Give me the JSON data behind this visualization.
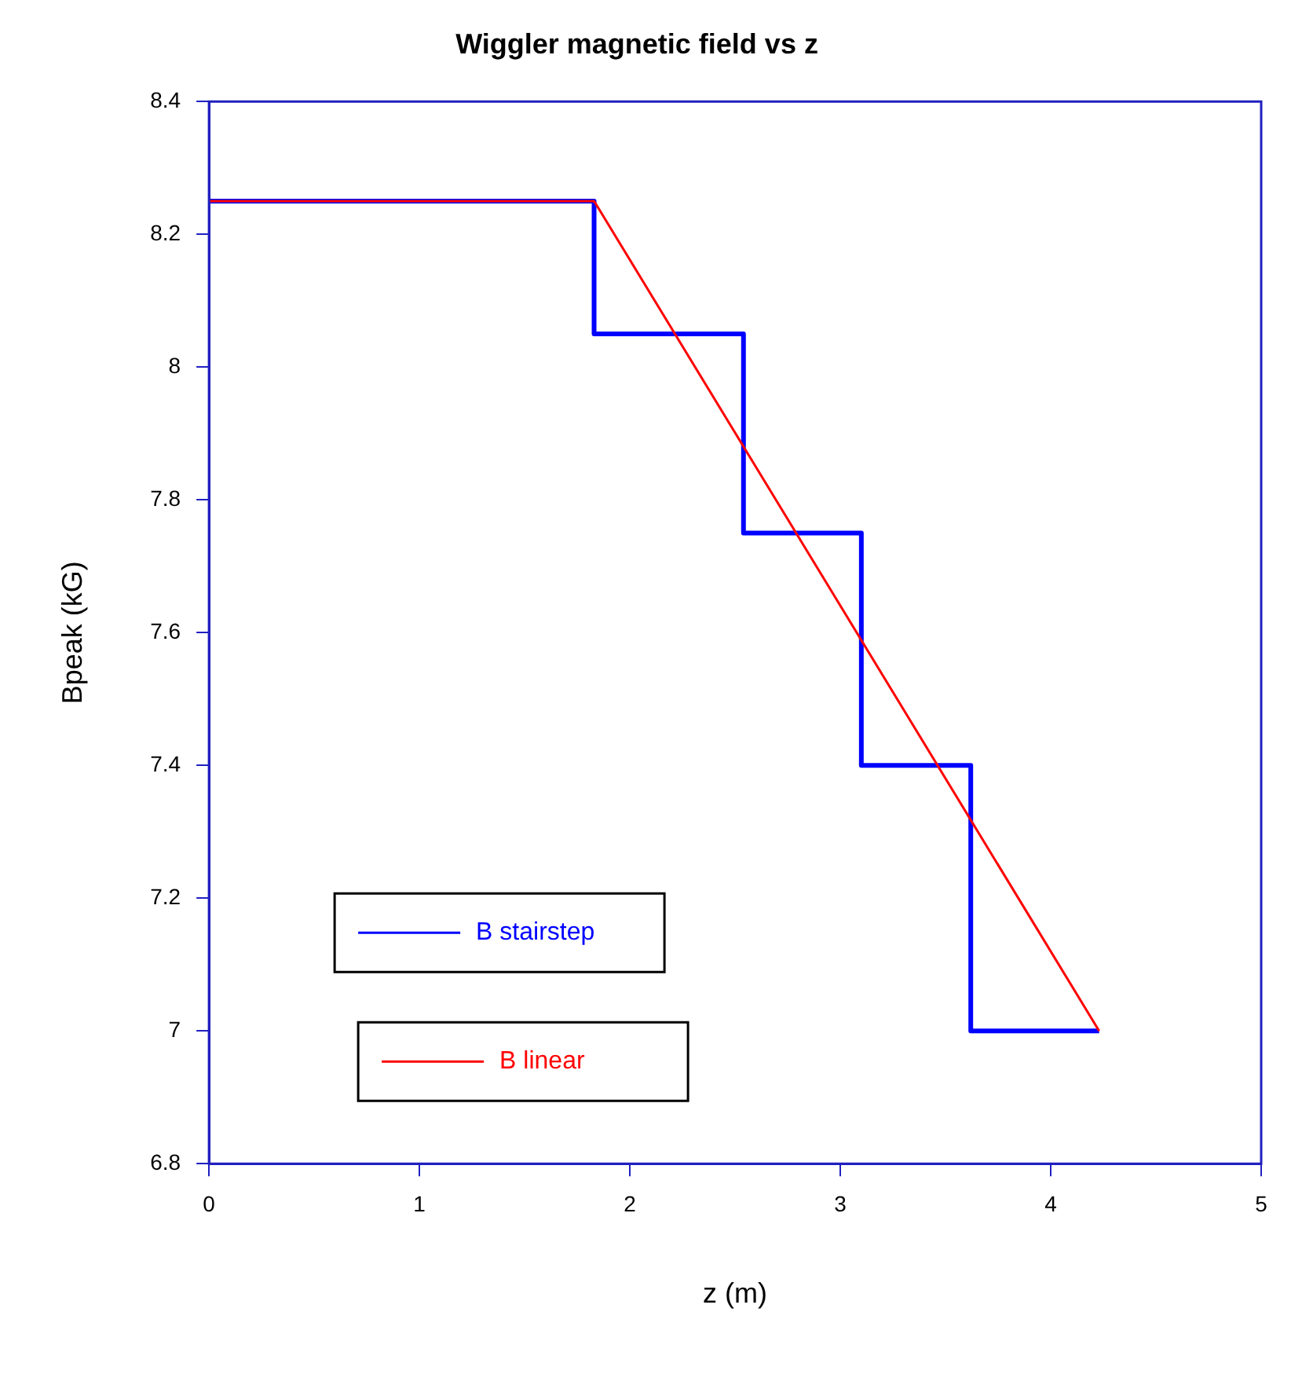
{
  "chart_data": {
    "type": "line",
    "title": "Wiggler magnetic field vs z",
    "xlabel": "z (m)",
    "ylabel": "Bpeak (kG)",
    "series": [
      {
        "name": "B stairstep",
        "type": "step",
        "color": "#0000ff",
        "x": [
          0,
          1.83,
          2.54,
          3.1,
          3.62,
          4.23
        ],
        "values": [
          8.25,
          8.05,
          7.75,
          7.4,
          7.0,
          7.0
        ]
      },
      {
        "name": "B linear",
        "type": "line",
        "color": "#ff0000",
        "x": [
          0,
          1.83,
          4.23
        ],
        "values": [
          8.25,
          8.25,
          7.0
        ]
      }
    ],
    "xlim": [
      0,
      5
    ],
    "xticks": [
      0,
      1,
      2,
      3,
      4,
      5
    ],
    "ylim": [
      6.8,
      8.4
    ],
    "yticks": [
      6.8,
      7,
      7.2,
      7.4,
      7.6,
      7.8,
      8,
      8.2,
      8.4
    ],
    "grid": false,
    "legend": "bottom left",
    "marker": "none",
    "line_style": "solid"
  }
}
